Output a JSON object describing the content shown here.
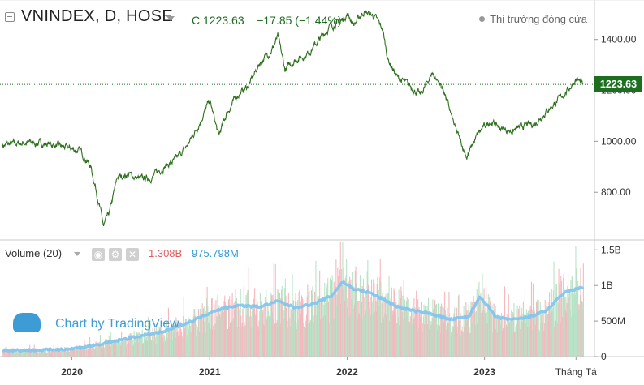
{
  "header": {
    "symbol": "VNINDEX, D, HOSE",
    "close_label": "C",
    "close_value": "1223.63",
    "change": "−17.85",
    "change_pct": "(−1.44%)",
    "market_status": "Thị trường đóng cửa"
  },
  "price_tag": "1223.63",
  "volume_panel": {
    "label": "Volume (20)",
    "volume_value": "1.308B",
    "ma_value": "975.798M",
    "up_color": "#b9e3c6",
    "down_color": "#f4b8be",
    "ma_color": "#7ec4ef"
  },
  "watermark": "Chart by TradingView",
  "colors": {
    "price_line": "#2e6f1d",
    "accent": "#1d6f20",
    "axis_text": "#333333"
  },
  "chart_data": [
    {
      "type": "line",
      "title": "VNINDEX, D, HOSE",
      "y_ticks": [
        800,
        1000,
        1200,
        1400
      ],
      "y_tick_labels": [
        "800.00",
        "1000.00",
        "1200.00",
        "1400.00"
      ],
      "ylim": [
        613,
        1555
      ],
      "x_tick_labels": [
        "2020",
        "2021",
        "2022",
        "2023",
        "Tháng Tá"
      ],
      "last_close": 1223.63,
      "series": [
        {
          "x": [
            "2019-07-01",
            "2019-09-01",
            "2019-11-01",
            "2020-01-01",
            "2020-01-25",
            "2020-02-20",
            "2020-03-10",
            "2020-03-25",
            "2020-04-10",
            "2020-05-01",
            "2020-06-01",
            "2020-07-01",
            "2020-08-01",
            "2020-09-01",
            "2020-10-01",
            "2020-11-01",
            "2020-12-01",
            "2021-01-01",
            "2021-01-25",
            "2021-02-15",
            "2021-03-15",
            "2021-04-15",
            "2021-05-15",
            "2021-06-15",
            "2021-07-01",
            "2021-07-20",
            "2021-08-15",
            "2021-09-15",
            "2021-10-15",
            "2021-11-15",
            "2021-12-15",
            "2022-01-01",
            "2022-01-20",
            "2022-02-15",
            "2022-03-15",
            "2022-04-05",
            "2022-04-20",
            "2022-05-15",
            "2022-06-15",
            "2022-07-15",
            "2022-08-15",
            "2022-09-15",
            "2022-10-15",
            "2022-11-15",
            "2022-12-15",
            "2023-01-15",
            "2023-02-15",
            "2023-03-15",
            "2023-04-15",
            "2023-05-15",
            "2023-06-15",
            "2023-07-15",
            "2023-08-15",
            "2023-09-01",
            "2023-09-20"
          ],
          "y": [
            985,
            995,
            990,
            970,
            960,
            900,
            780,
            665,
            720,
            860,
            870,
            850,
            860,
            900,
            925,
            980,
            1060,
            1160,
            1020,
            1110,
            1180,
            1220,
            1310,
            1360,
            1410,
            1280,
            1320,
            1340,
            1390,
            1450,
            1470,
            1500,
            1460,
            1510,
            1490,
            1440,
            1320,
            1250,
            1220,
            1180,
            1270,
            1200,
            1050,
            940,
            1030,
            1080,
            1050,
            1040,
            1060,
            1070,
            1120,
            1160,
            1210,
            1245,
            1223.63
          ]
        }
      ]
    },
    {
      "type": "bar",
      "title": "Volume (20)",
      "y_ticks": [
        0,
        500,
        1000,
        1500
      ],
      "y_tick_labels": [
        "0",
        "500M",
        "1B",
        "1.5B"
      ],
      "ylim": [
        0,
        1640
      ],
      "units": "million shares",
      "volume_last": 1308,
      "ma20_last": 975.798,
      "ma_x": [
        "2019-07-01",
        "2019-10-01",
        "2020-01-01",
        "2020-03-15",
        "2020-06-01",
        "2020-09-01",
        "2020-11-15",
        "2021-01-15",
        "2021-03-15",
        "2021-05-15",
        "2021-07-01",
        "2021-08-15",
        "2021-10-01",
        "2021-11-20",
        "2021-12-20",
        "2022-01-20",
        "2022-03-01",
        "2022-04-01",
        "2022-05-15",
        "2022-07-01",
        "2022-08-15",
        "2022-10-01",
        "2022-11-20",
        "2022-12-20",
        "2023-02-01",
        "2023-03-20",
        "2023-05-01",
        "2023-06-15",
        "2023-08-01",
        "2023-09-20"
      ],
      "ma_y": [
        90,
        90,
        110,
        170,
        260,
        350,
        500,
        650,
        720,
        700,
        780,
        690,
        740,
        850,
        1050,
        950,
        900,
        820,
        700,
        640,
        600,
        520,
        560,
        850,
        550,
        520,
        560,
        650,
        900,
        976
      ]
    }
  ]
}
